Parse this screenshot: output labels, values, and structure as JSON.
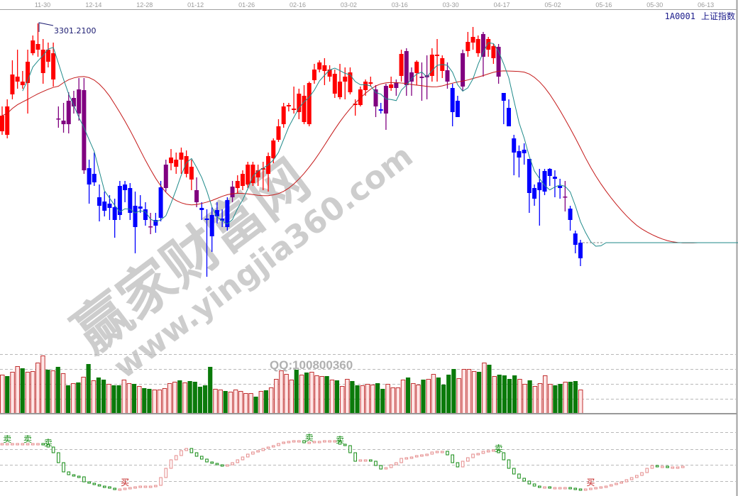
{
  "header": {
    "symbol": "1A0001",
    "name": "上证指数"
  },
  "watermark": {
    "brand": "赢家财富网",
    "url": "www.yingjia360.com",
    "qq": "QQ:100800360"
  },
  "colors": {
    "up": "#ff0000",
    "down": "#0000ff",
    "neutral": "#800080",
    "ma_short": "#1f8a8a",
    "ma_long": "#c41818",
    "vol_down": "#0a7a0a",
    "vol_up_edge": "#c03030",
    "vol_up_fill": "#ffe6e6",
    "sell": "#108a10",
    "buy": "#c01818"
  },
  "chart_data": {
    "type": "candlestick",
    "title": "",
    "x_tick_labels": [
      "11-30",
      "12-14",
      "12-28",
      "01-12",
      "01-26",
      "02-16",
      "03-02",
      "03-16",
      "03-30",
      "04-17",
      "05-02",
      "05-16",
      "05-30",
      "06-13"
    ],
    "peak_label": "3301.2100",
    "price_range": [
      2230,
      3301.21
    ],
    "extension_price": 2374,
    "candle_fields": [
      "open",
      "close",
      "high",
      "low",
      "color"
    ],
    "candles": [
      [
        2845,
        2911,
        2950,
        2830,
        "r"
      ],
      [
        2830,
        2950,
        2980,
        2815,
        "r"
      ],
      [
        3001,
        3085,
        3145,
        2980,
        "r"
      ],
      [
        3055,
        3076,
        3190,
        3025,
        "r"
      ],
      [
        3040,
        3055,
        3100,
        3025,
        "r"
      ],
      [
        3049,
        3139,
        3190,
        2920,
        "r"
      ],
      [
        3175,
        3229,
        3250,
        3166,
        "r"
      ],
      [
        3190,
        3214,
        3301.21,
        3160,
        "r"
      ],
      [
        3091,
        3190,
        3235,
        3046,
        "r"
      ],
      [
        3139,
        3190,
        3220,
        3115,
        "r"
      ],
      [
        3064,
        3175,
        3220,
        3034,
        "r"
      ],
      [
        2899,
        2896,
        2950,
        2860,
        "p"
      ],
      [
        2890,
        2875,
        2965,
        2839,
        "p"
      ],
      [
        2974,
        2875,
        3010,
        2836,
        "p"
      ],
      [
        2986,
        2950,
        3016,
        2920,
        "p"
      ],
      [
        3022,
        2920,
        3070,
        2890,
        "p"
      ],
      [
        3019,
        2680,
        3070,
        2665,
        "p"
      ],
      [
        2689,
        2620,
        2725,
        2539,
        "b"
      ],
      [
        2665,
        2629,
        2755,
        2614,
        "b"
      ],
      [
        2566,
        2530,
        2620,
        2464,
        "b"
      ],
      [
        2548,
        2509,
        2590,
        2485,
        "b"
      ],
      [
        2539,
        2521,
        2575,
        2470,
        "b"
      ],
      [
        2524,
        2470,
        2560,
        2395,
        "b"
      ],
      [
        2614,
        2491,
        2635,
        2470,
        "b"
      ],
      [
        2620,
        2596,
        2635,
        2545,
        "b"
      ],
      [
        2605,
        2500,
        2626,
        2470,
        "b"
      ],
      [
        2530,
        2440,
        2590,
        2329,
        "b"
      ],
      [
        2527,
        2518,
        2575,
        2500,
        "b"
      ],
      [
        2515,
        2470,
        2545,
        2446,
        "b"
      ],
      [
        2443,
        2440,
        2500,
        2410,
        "p"
      ],
      [
        2470,
        2446,
        2500,
        2416,
        "b"
      ],
      [
        2608,
        2479,
        2635,
        2464,
        "b"
      ],
      [
        2704,
        2605,
        2725,
        2590,
        "p"
      ],
      [
        2710,
        2734,
        2770,
        2680,
        "r"
      ],
      [
        2695,
        2725,
        2755,
        2665,
        "r"
      ],
      [
        2725,
        2755,
        2776,
        2665,
        "r"
      ],
      [
        2665,
        2740,
        2764,
        2650,
        "r"
      ],
      [
        2641,
        2695,
        2725,
        2596,
        "r"
      ],
      [
        2596,
        2545,
        2650,
        2524,
        "p"
      ],
      [
        2521,
        2512,
        2545,
        2470,
        "b"
      ],
      [
        2476,
        2470,
        2515,
        2230,
        "b"
      ],
      [
        2491,
        2401,
        2524,
        2335,
        "b"
      ],
      [
        2512,
        2485,
        2545,
        2455,
        "b"
      ],
      [
        2476,
        2467,
        2515,
        2440,
        "b"
      ],
      [
        2554,
        2440,
        2566,
        2425,
        "b"
      ],
      [
        2611,
        2566,
        2635,
        2545,
        "p"
      ],
      [
        2605,
        2635,
        2659,
        2584,
        "r"
      ],
      [
        2614,
        2665,
        2680,
        2596,
        "r"
      ],
      [
        2620,
        2704,
        2716,
        2605,
        "r"
      ],
      [
        2626,
        2704,
        2716,
        2614,
        "r"
      ],
      [
        2650,
        2680,
        2704,
        2614,
        "r"
      ],
      [
        2683,
        2689,
        2716,
        2596,
        "r"
      ],
      [
        2665,
        2740,
        2755,
        2590,
        "r"
      ],
      [
        2731,
        2806,
        2815,
        2710,
        "r"
      ],
      [
        2809,
        2866,
        2896,
        2800,
        "r"
      ],
      [
        2875,
        2950,
        2965,
        2860,
        "r"
      ],
      [
        2950,
        2956,
        2965,
        2929,
        "r"
      ],
      [
        2935,
        2941,
        3034,
        2920,
        "r"
      ],
      [
        2926,
        3004,
        3025,
        2896,
        "r"
      ],
      [
        2884,
        2995,
        3040,
        2875,
        "r"
      ],
      [
        2875,
        3049,
        3055,
        2866,
        "r"
      ],
      [
        3061,
        3106,
        3130,
        3046,
        "r"
      ],
      [
        3106,
        3136,
        3145,
        3094,
        "r"
      ],
      [
        3100,
        3124,
        3154,
        3040,
        "r"
      ],
      [
        3076,
        3106,
        3124,
        3055,
        "r"
      ],
      [
        3004,
        3088,
        3106,
        2986,
        "r"
      ],
      [
        2989,
        3055,
        3130,
        2980,
        "r"
      ],
      [
        3055,
        3076,
        3115,
        2980,
        "r"
      ],
      [
        3010,
        3094,
        3115,
        3001,
        "r"
      ],
      [
        2956,
        2962,
        2980,
        2911,
        "r"
      ],
      [
        2956,
        3022,
        3034,
        2950,
        "r"
      ],
      [
        3019,
        3055,
        3064,
        2995,
        "r"
      ],
      [
        3046,
        3052,
        3076,
        3034,
        "r"
      ],
      [
        3022,
        2950,
        3040,
        2905,
        "p"
      ],
      [
        2938,
        2932,
        2965,
        2920,
        "b"
      ],
      [
        3037,
        2920,
        3046,
        2851,
        "p"
      ],
      [
        3028,
        3043,
        3076,
        3016,
        "r"
      ],
      [
        3052,
        3028,
        3064,
        2995,
        "p"
      ],
      [
        3079,
        3172,
        3190,
        3055,
        "r"
      ],
      [
        3184,
        3040,
        3196,
        2995,
        "p"
      ],
      [
        3094,
        3055,
        3115,
        2995,
        "p"
      ],
      [
        3091,
        3139,
        3145,
        3040,
        "r"
      ],
      [
        3076,
        3070,
        3136,
        2974,
        "p"
      ],
      [
        3082,
        3073,
        3166,
        2980,
        "p"
      ],
      [
        3079,
        3169,
        3196,
        3055,
        "r"
      ],
      [
        3163,
        3169,
        3235,
        3055,
        "r"
      ],
      [
        3100,
        3154,
        3166,
        3070,
        "r"
      ],
      [
        3103,
        3055,
        3136,
        3025,
        "p"
      ],
      [
        3028,
        2926,
        3046,
        2866,
        "b"
      ],
      [
        2974,
        2905,
        2995,
        2905,
        "b"
      ],
      [
        3175,
        3034,
        3190,
        3016,
        "p"
      ],
      [
        3184,
        3223,
        3265,
        3160,
        "r"
      ],
      [
        3220,
        3244,
        3286,
        3190,
        "r"
      ],
      [
        3175,
        3235,
        3250,
        3160,
        "r"
      ],
      [
        3256,
        3160,
        3265,
        3076,
        "p"
      ],
      [
        3190,
        3235,
        3244,
        3160,
        "r"
      ],
      [
        3154,
        3205,
        3214,
        3130,
        "r"
      ],
      [
        3202,
        3076,
        3214,
        3046,
        "p"
      ],
      [
        3007,
        2974,
        3007,
        2875,
        "b"
      ],
      [
        2944,
        2866,
        2980,
        2866,
        "b"
      ],
      [
        2815,
        2755,
        2830,
        2659,
        "b"
      ],
      [
        2761,
        2734,
        2785,
        2650,
        "b"
      ],
      [
        2767,
        2752,
        2794,
        2704,
        "b"
      ],
      [
        2728,
        2584,
        2728,
        2500,
        "b"
      ],
      [
        2605,
        2560,
        2620,
        2530,
        "b"
      ],
      [
        2629,
        2596,
        2686,
        2446,
        "b"
      ],
      [
        2677,
        2590,
        2686,
        2575,
        "b"
      ],
      [
        2686,
        2656,
        2689,
        2614,
        "b"
      ],
      [
        2653,
        2644,
        2680,
        2566,
        "b"
      ],
      [
        2614,
        2605,
        2644,
        2560,
        "b"
      ],
      [
        2569,
        2566,
        2635,
        2506,
        "p"
      ],
      [
        2518,
        2470,
        2530,
        2425,
        "b"
      ],
      [
        2413,
        2365,
        2425,
        2329,
        "b"
      ],
      [
        2374,
        2308,
        2386,
        2275,
        "b"
      ]
    ],
    "volume_fields": [
      "value",
      "color"
    ],
    "volume": [
      [
        55,
        "r"
      ],
      [
        53,
        "g"
      ],
      [
        59,
        "r"
      ],
      [
        67,
        "r"
      ],
      [
        64,
        "g"
      ],
      [
        59,
        "r"
      ],
      [
        60,
        "r"
      ],
      [
        72,
        "r"
      ],
      [
        82,
        "r"
      ],
      [
        62,
        "g"
      ],
      [
        61,
        "r"
      ],
      [
        66,
        "g"
      ],
      [
        57,
        "r"
      ],
      [
        40,
        "g"
      ],
      [
        43,
        "r"
      ],
      [
        44,
        "g"
      ],
      [
        52,
        "r"
      ],
      [
        70,
        "g"
      ],
      [
        47,
        "r"
      ],
      [
        51,
        "g"
      ],
      [
        48,
        "g"
      ],
      [
        42,
        "r"
      ],
      [
        40,
        "g"
      ],
      [
        40,
        "g"
      ],
      [
        48,
        "r"
      ],
      [
        43,
        "r"
      ],
      [
        42,
        "g"
      ],
      [
        39,
        "r"
      ],
      [
        36,
        "g"
      ],
      [
        35,
        "g"
      ],
      [
        34,
        "r"
      ],
      [
        34,
        "r"
      ],
      [
        36,
        "r"
      ],
      [
        43,
        "r"
      ],
      [
        45,
        "r"
      ],
      [
        47,
        "g"
      ],
      [
        44,
        "r"
      ],
      [
        46,
        "g"
      ],
      [
        45,
        "g"
      ],
      [
        38,
        "g"
      ],
      [
        40,
        "g"
      ],
      [
        66,
        "g"
      ],
      [
        35,
        "r"
      ],
      [
        34,
        "r"
      ],
      [
        32,
        "g"
      ],
      [
        31,
        "r"
      ],
      [
        34,
        "r"
      ],
      [
        32,
        "r"
      ],
      [
        29,
        "r"
      ],
      [
        29,
        "r"
      ],
      [
        24,
        "g"
      ],
      [
        32,
        "r"
      ],
      [
        33,
        "g"
      ],
      [
        37,
        "r"
      ],
      [
        49,
        "r"
      ],
      [
        61,
        "r"
      ],
      [
        56,
        "r"
      ],
      [
        48,
        "r"
      ],
      [
        62,
        "g"
      ],
      [
        55,
        "r"
      ],
      [
        58,
        "g"
      ],
      [
        59,
        "r"
      ],
      [
        54,
        "r"
      ],
      [
        53,
        "r"
      ],
      [
        53,
        "g"
      ],
      [
        48,
        "r"
      ],
      [
        47,
        "g"
      ],
      [
        39,
        "r"
      ],
      [
        49,
        "r"
      ],
      [
        46,
        "g"
      ],
      [
        40,
        "g"
      ],
      [
        40,
        "r"
      ],
      [
        42,
        "r"
      ],
      [
        41,
        "r"
      ],
      [
        43,
        "g"
      ],
      [
        35,
        "g"
      ],
      [
        42,
        "r"
      ],
      [
        37,
        "r"
      ],
      [
        37,
        "r"
      ],
      [
        48,
        "r"
      ],
      [
        51,
        "g"
      ],
      [
        43,
        "r"
      ],
      [
        41,
        "r"
      ],
      [
        48,
        "g"
      ],
      [
        49,
        "r"
      ],
      [
        56,
        "r"
      ],
      [
        51,
        "g"
      ],
      [
        41,
        "g"
      ],
      [
        55,
        "g"
      ],
      [
        63,
        "g"
      ],
      [
        50,
        "r"
      ],
      [
        63,
        "r"
      ],
      [
        63,
        "r"
      ],
      [
        60,
        "r"
      ],
      [
        59,
        "g"
      ],
      [
        72,
        "r"
      ],
      [
        69,
        "g"
      ],
      [
        53,
        "r"
      ],
      [
        55,
        "g"
      ],
      [
        54,
        "g"
      ],
      [
        49,
        "g"
      ],
      [
        54,
        "g"
      ],
      [
        49,
        "r"
      ],
      [
        42,
        "r"
      ],
      [
        47,
        "g"
      ],
      [
        39,
        "r"
      ],
      [
        43,
        "r"
      ],
      [
        54,
        "r"
      ],
      [
        42,
        "r"
      ],
      [
        40,
        "g"
      ],
      [
        42,
        "g"
      ],
      [
        45,
        "r"
      ],
      [
        45,
        "g"
      ],
      [
        46,
        "g"
      ],
      [
        34,
        "r"
      ]
    ],
    "indicator": [
      67,
      67,
      67,
      67,
      67,
      67,
      67,
      67,
      66,
      62,
      54,
      40,
      27,
      23,
      21,
      20,
      13,
      11,
      9,
      7,
      6,
      4,
      2,
      3,
      4,
      5,
      6,
      7,
      7,
      7,
      8,
      19,
      32,
      44,
      50,
      57,
      60,
      54,
      49,
      45,
      41,
      39,
      37,
      35,
      37,
      40,
      44,
      48,
      52,
      55,
      57,
      60,
      62,
      64,
      67,
      69,
      70,
      71,
      71,
      68,
      69,
      70,
      70,
      71,
      71,
      71,
      66,
      64,
      54,
      42,
      44,
      44,
      42,
      36,
      31,
      33,
      37,
      40,
      46,
      47,
      48,
      50,
      51,
      52,
      55,
      56,
      56,
      51,
      40,
      34,
      42,
      47,
      52,
      53,
      56,
      57,
      58,
      54,
      44,
      32,
      24,
      18,
      14,
      10,
      7,
      6,
      6,
      5,
      5,
      5,
      5,
      4,
      3,
      2,
      3,
      4,
      5,
      6,
      7,
      9,
      11,
      13,
      16,
      19,
      22,
      26,
      32,
      36,
      35,
      35,
      34,
      34,
      34,
      35
    ],
    "signals": [
      {
        "label": "卖",
        "type": "sell",
        "index": 1
      },
      {
        "label": "卖",
        "type": "sell",
        "index": 5
      },
      {
        "label": "卖",
        "type": "sell",
        "index": 9
      },
      {
        "label": "买",
        "type": "buy",
        "index": 24
      },
      {
        "label": "卖",
        "type": "sell",
        "index": 60
      },
      {
        "label": "卖",
        "type": "sell",
        "index": 66
      },
      {
        "label": "卖",
        "type": "sell",
        "index": 97
      },
      {
        "label": "买",
        "type": "buy",
        "index": 115
      }
    ]
  }
}
